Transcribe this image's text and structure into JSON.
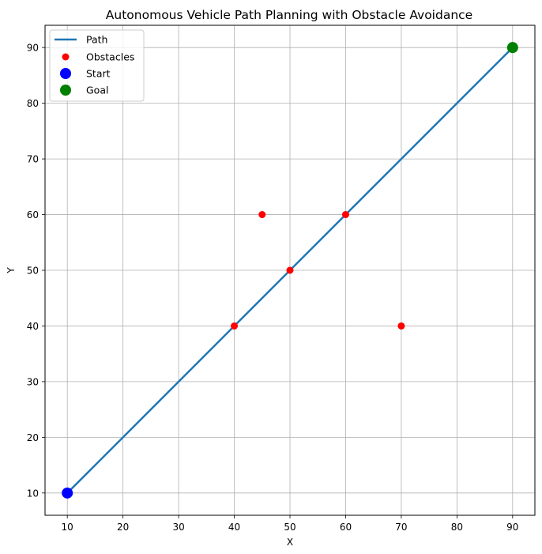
{
  "chart_data": {
    "type": "line+scatter",
    "title": "Autonomous Vehicle Path Planning with Obstacle Avoidance",
    "xlabel": "X",
    "ylabel": "Y",
    "xlim": [
      6,
      94
    ],
    "ylim": [
      6,
      94
    ],
    "xticks": [
      10,
      20,
      30,
      40,
      50,
      60,
      70,
      80,
      90
    ],
    "yticks": [
      10,
      20,
      30,
      40,
      50,
      60,
      70,
      80,
      90
    ],
    "grid": true,
    "legend_position": "top-left",
    "series": [
      {
        "name": "Path",
        "kind": "line",
        "color": "#1f77b4",
        "points": [
          [
            10,
            10
          ],
          [
            90,
            90
          ]
        ]
      },
      {
        "name": "Obstacles",
        "kind": "scatter",
        "color": "#ff0000",
        "points": [
          [
            40,
            40
          ],
          [
            45,
            60
          ],
          [
            50,
            50
          ],
          [
            60,
            60
          ],
          [
            70,
            40
          ]
        ]
      },
      {
        "name": "Start",
        "kind": "scatter",
        "color": "#0000ff",
        "points": [
          [
            10,
            10
          ]
        ]
      },
      {
        "name": "Goal",
        "kind": "scatter",
        "color": "#008000",
        "points": [
          [
            90,
            90
          ]
        ]
      }
    ]
  }
}
